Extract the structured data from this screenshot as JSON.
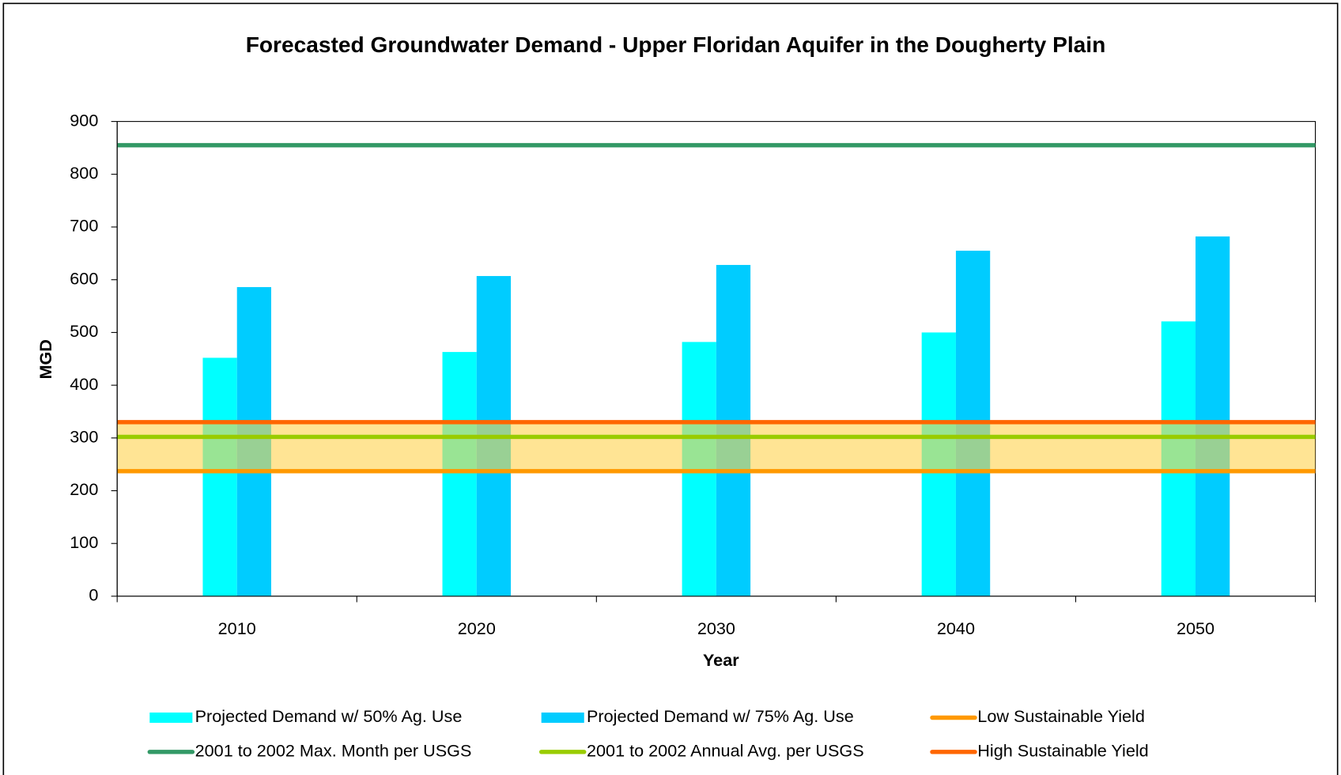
{
  "chart_data": {
    "type": "bar",
    "title": "Forecasted Groundwater Demand - Upper Floridan Aquifer in the Dougherty Plain",
    "x_label": "Year",
    "y_label": "MGD",
    "categories": [
      "2010",
      "2020",
      "2030",
      "2040",
      "2050"
    ],
    "series": [
      {
        "name": "Projected Demand w/ 50% Ag. Use",
        "color": "#00ffff",
        "values": [
          452,
          463,
          482,
          500,
          521
        ]
      },
      {
        "name": "Projected Demand w/ 75% Ag. Use",
        "color": "#00ccff",
        "values": [
          586,
          607,
          628,
          655,
          682
        ]
      }
    ],
    "reference_lines": [
      {
        "name": "Low Sustainable Yield",
        "color": "#ff9900",
        "value": 237
      },
      {
        "name": "2001 to 2002 Max. Month per USGS",
        "color": "#339966",
        "value": 855
      },
      {
        "name": "2001 to 2002 Annual Avg. per USGS",
        "color": "#99cc00",
        "value": 302
      },
      {
        "name": "High Sustainable Yield",
        "color": "#ff6600",
        "value": 330
      }
    ],
    "band_color": "#ffd24d",
    "ylim": [
      0,
      900
    ],
    "yticks": [
      0,
      100,
      200,
      300,
      400,
      500,
      600,
      700,
      800,
      900
    ],
    "grid": false,
    "legend": "bottom"
  }
}
